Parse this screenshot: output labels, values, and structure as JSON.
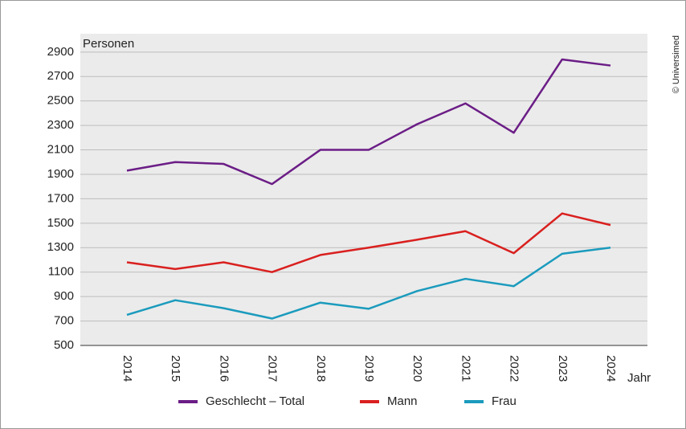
{
  "chart_data": {
    "type": "line",
    "y_label": "Personen",
    "x_label": "Jahr",
    "credit": "© Universimed",
    "categories": [
      "2014",
      "2015",
      "2016",
      "2017",
      "2018",
      "2019",
      "2020",
      "2021",
      "2022",
      "2023",
      "2024"
    ],
    "series": [
      {
        "name": "Geschlecht – Total",
        "color": "#6b1d86",
        "values": [
          1930,
          2000,
          1985,
          1820,
          2100,
          2100,
          2310,
          2480,
          2240,
          2840,
          2790
        ]
      },
      {
        "name": "Mann",
        "color": "#d9201f",
        "values": [
          1180,
          1125,
          1180,
          1100,
          1240,
          1300,
          1365,
          1435,
          1255,
          1580,
          1485
        ]
      },
      {
        "name": "Frau",
        "color": "#1b9bbd",
        "values": [
          750,
          870,
          805,
          720,
          850,
          800,
          945,
          1045,
          985,
          1250,
          1300
        ]
      }
    ],
    "ylim": [
      500,
      3050
    ],
    "yticks": [
      500,
      700,
      900,
      1100,
      1300,
      1500,
      1700,
      1900,
      2100,
      2300,
      2500,
      2700,
      2900
    ],
    "grid": true
  }
}
